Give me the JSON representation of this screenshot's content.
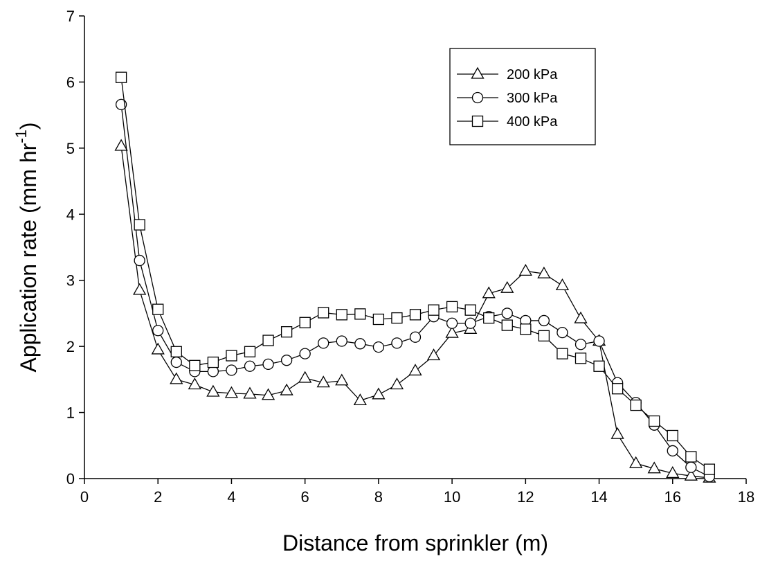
{
  "chart_data": {
    "type": "line",
    "xlabel": "Distance from sprinkler (m)",
    "ylabel": [
      "Application rate (mm hr",
      "-1",
      ")"
    ],
    "x": [
      1,
      1.5,
      2,
      2.5,
      3,
      3.5,
      4,
      4.5,
      5,
      5.5,
      6,
      6.5,
      7,
      7.5,
      8,
      8.5,
      9,
      9.5,
      10,
      10.5,
      11,
      11.5,
      12,
      12.5,
      13,
      13.5,
      14,
      14.5,
      15,
      15.5,
      16,
      16.5,
      17
    ],
    "series": [
      {
        "name": "200 kPa",
        "color": "#000000",
        "marker": "triangle",
        "values": [
          5.03,
          2.85,
          1.95,
          1.5,
          1.42,
          1.31,
          1.29,
          1.28,
          1.26,
          1.33,
          1.52,
          1.45,
          1.48,
          1.18,
          1.27,
          1.42,
          1.63,
          1.86,
          2.2,
          2.26,
          2.8,
          2.88,
          3.14,
          3.1,
          2.92,
          2.42,
          2.08,
          0.67,
          0.23,
          0.15,
          0.08,
          0.04,
          0.01
        ]
      },
      {
        "name": "300 kPa",
        "color": "#000000",
        "marker": "circle",
        "values": [
          5.66,
          3.3,
          2.24,
          1.76,
          1.62,
          1.62,
          1.64,
          1.7,
          1.73,
          1.79,
          1.89,
          2.05,
          2.08,
          2.04,
          1.99,
          2.05,
          2.14,
          2.45,
          2.35,
          2.35,
          2.45,
          2.5,
          2.39,
          2.39,
          2.21,
          2.03,
          2.08,
          1.45,
          1.15,
          0.81,
          0.42,
          0.17,
          0.03
        ]
      },
      {
        "name": "400 kPa",
        "color": "#000000",
        "marker": "square",
        "values": [
          6.07,
          3.84,
          2.56,
          1.92,
          1.71,
          1.76,
          1.86,
          1.92,
          2.09,
          2.22,
          2.36,
          2.51,
          2.48,
          2.49,
          2.41,
          2.43,
          2.48,
          2.55,
          2.6,
          2.55,
          2.43,
          2.32,
          2.26,
          2.16,
          1.89,
          1.82,
          1.7,
          1.36,
          1.11,
          0.87,
          0.65,
          0.33,
          0.14
        ]
      }
    ],
    "xlim": [
      0,
      18
    ],
    "xticks": [
      0,
      2,
      4,
      6,
      8,
      10,
      12,
      14,
      16,
      18
    ],
    "ylim": [
      0,
      7
    ],
    "yticks": [
      0,
      1,
      2,
      3,
      4,
      5,
      6,
      7
    ],
    "grid": false,
    "legend": "upper right"
  }
}
